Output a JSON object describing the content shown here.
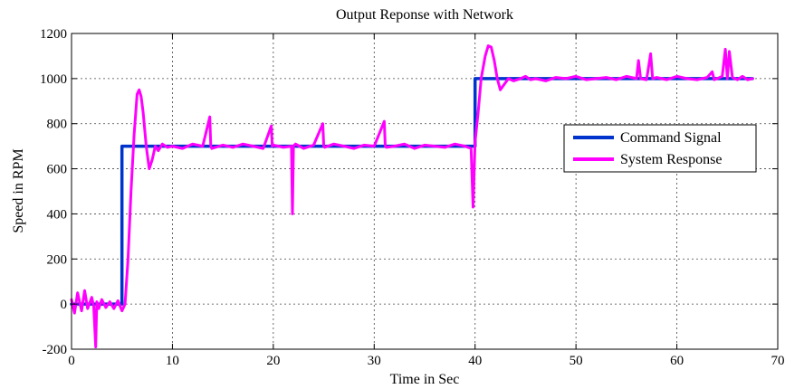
{
  "chart_data": {
    "type": "line",
    "title": "Output Reponse with Network",
    "xlabel": "Time in Sec",
    "ylabel": "Speed in RPM",
    "xlim": [
      0,
      70
    ],
    "ylim": [
      -200,
      1200
    ],
    "xticks": [
      0,
      10,
      20,
      30,
      40,
      50,
      60,
      70
    ],
    "yticks": [
      -200,
      0,
      200,
      400,
      600,
      800,
      1000,
      1200
    ],
    "grid": true,
    "legend_position": "right",
    "series": [
      {
        "name": "Command Signal",
        "color": "#0033cc",
        "x": [
          0,
          5,
          5,
          40,
          40,
          67.5
        ],
        "y": [
          0,
          0,
          700,
          700,
          1000,
          1000
        ]
      },
      {
        "name": "System Response",
        "color": "#ff00ff",
        "x": [
          0,
          0.3,
          0.6,
          1.0,
          1.3,
          1.6,
          2.0,
          2.2,
          2.4,
          2.5,
          2.7,
          3.0,
          3.4,
          3.8,
          4.2,
          4.6,
          5.0,
          5.3,
          5.6,
          5.9,
          6.2,
          6.5,
          6.7,
          6.9,
          7.1,
          7.4,
          7.7,
          8.0,
          8.3,
          8.6,
          9.0,
          9.5,
          10.0,
          11.0,
          12.0,
          13.0,
          13.7,
          13.8,
          13.9,
          15.0,
          16.0,
          17.0,
          18.0,
          19.0,
          19.8,
          19.9,
          20.0,
          21.0,
          21.8,
          21.9,
          22.0,
          22.2,
          23.0,
          24.0,
          24.9,
          25.0,
          25.1,
          26.0,
          27.0,
          28.0,
          29.0,
          30.0,
          31.0,
          31.1,
          31.2,
          32.0,
          33.0,
          34.0,
          35.0,
          36.0,
          37.0,
          38.0,
          39.0,
          39.6,
          39.8,
          40.0,
          40.3,
          40.6,
          41.0,
          41.3,
          41.6,
          41.9,
          42.2,
          42.5,
          42.9,
          43.3,
          43.8,
          44.5,
          45.0,
          45.5,
          46.0,
          47.0,
          48.0,
          49.0,
          50.0,
          51.0,
          52.0,
          53.0,
          54.0,
          55.0,
          56.0,
          56.2,
          56.4,
          57.0,
          57.4,
          57.6,
          58.0,
          59.0,
          60.0,
          61.0,
          62.0,
          63.0,
          63.5,
          63.7,
          64.0,
          64.5,
          64.8,
          65.0,
          65.2,
          65.5,
          66.0,
          66.5,
          67.0,
          67.5
        ],
        "y": [
          20,
          -40,
          50,
          -30,
          60,
          -20,
          30,
          -10,
          -190,
          10,
          -20,
          20,
          -15,
          10,
          -20,
          15,
          -30,
          0,
          200,
          500,
          750,
          930,
          950,
          920,
          850,
          700,
          600,
          640,
          700,
          680,
          710,
          695,
          700,
          690,
          710,
          700,
          830,
          700,
          690,
          705,
          695,
          710,
          700,
          690,
          790,
          700,
          705,
          695,
          700,
          400,
          700,
          710,
          690,
          705,
          800,
          700,
          695,
          710,
          700,
          690,
          705,
          700,
          810,
          700,
          695,
          700,
          710,
          690,
          705,
          700,
          695,
          710,
          700,
          690,
          430,
          720,
          850,
          1000,
          1100,
          1145,
          1140,
          1080,
          1000,
          950,
          975,
          1000,
          990,
          1000,
          1010,
          995,
          1000,
          990,
          1005,
          1000,
          1010,
          995,
          1000,
          1005,
          995,
          1010,
          1000,
          1080,
          1000,
          995,
          1110,
          1000,
          1005,
          995,
          1010,
          1000,
          995,
          1005,
          1030,
          995,
          1000,
          1010,
          1130,
          1000,
          1120,
          1005,
          995,
          1010,
          995,
          1000
        ]
      }
    ]
  }
}
